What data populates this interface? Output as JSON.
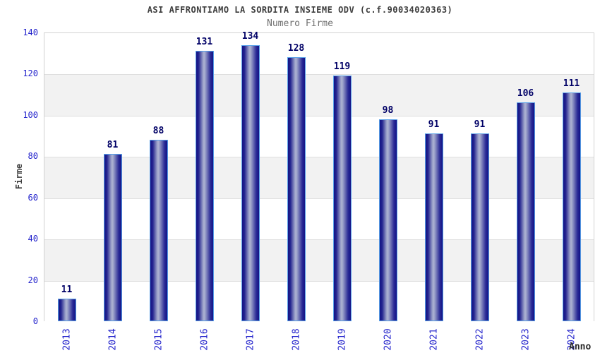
{
  "header": {
    "title": "ASI AFFRONTIAMO LA SORDITA INSIEME ODV (c.f.90034020363)",
    "subtitle": "Numero Firme"
  },
  "chart_data": {
    "type": "bar",
    "title": "ASI AFFRONTIAMO LA SORDITA INSIEME ODV (c.f.90034020363)",
    "subtitle": "Numero Firme",
    "categories": [
      "2013",
      "2014",
      "2015",
      "2016",
      "2017",
      "2018",
      "2019",
      "2020",
      "2021",
      "2022",
      "2023",
      "2024"
    ],
    "values": [
      11,
      81,
      88,
      131,
      134,
      128,
      119,
      98,
      91,
      91,
      106,
      111
    ],
    "xlabel": "Anno",
    "ylabel": "Firme",
    "ylim": [
      0,
      140
    ],
    "ytick_step": 20,
    "yticks": [
      0,
      20,
      40,
      60,
      80,
      100,
      120,
      140
    ],
    "grid": true,
    "grid_bands": true,
    "legend_position": "none"
  },
  "colors": {
    "axis_tick_label": "#2424cc",
    "bar_value_label": "#000066",
    "bar_dark": "#131385",
    "bar_highlight": "#aeb3d2",
    "bar_border": "#58a0e8",
    "band_gray": "#f2f2f2",
    "band_white": "#ffffff",
    "grid_line": "#dfdfdf",
    "plot_border": "#d2d2d2",
    "title_color": "#3d3d3d",
    "subtitle_color": "#6f6f6f"
  }
}
